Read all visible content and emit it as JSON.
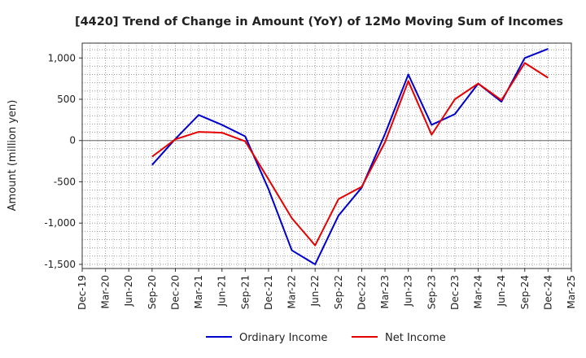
{
  "chart_data": {
    "type": "line",
    "title": "[4420]  Trend of Change in Amount (YoY) of 12Mo Moving Sum of Incomes",
    "xlabel": "",
    "ylabel": "Amount (million yen)",
    "ylim": [
      -1550,
      1180
    ],
    "yticks": [
      1000,
      500,
      0,
      -500,
      -1000,
      -1500
    ],
    "ytick_labels": [
      "1,000",
      "500",
      "0",
      "-500",
      "-1,000",
      "-1,500"
    ],
    "categories": [
      "Dec-19",
      "Mar-20",
      "Jun-20",
      "Sep-20",
      "Dec-20",
      "Mar-21",
      "Jun-21",
      "Sep-21",
      "Dec-21",
      "Mar-22",
      "Jun-22",
      "Sep-22",
      "Dec-22",
      "Mar-23",
      "Jun-23",
      "Sep-23",
      "Dec-23",
      "Mar-24",
      "Jun-24",
      "Sep-24",
      "Dec-24",
      "Mar-25"
    ],
    "grid": true,
    "legend_position": "bottom",
    "series": [
      {
        "name": "Ordinary Income",
        "color": "#0000cc",
        "values": [
          null,
          null,
          null,
          -295,
          20,
          310,
          190,
          50,
          -590,
          -1330,
          -1500,
          -910,
          -570,
          80,
          800,
          190,
          320,
          690,
          470,
          1000,
          1110,
          null
        ]
      },
      {
        "name": "Net Income",
        "color": "#e60000",
        "values": [
          null,
          null,
          null,
          -195,
          15,
          105,
          95,
          -10,
          -470,
          -940,
          -1270,
          -710,
          -560,
          -20,
          720,
          70,
          500,
          690,
          490,
          940,
          760,
          null
        ]
      }
    ]
  }
}
